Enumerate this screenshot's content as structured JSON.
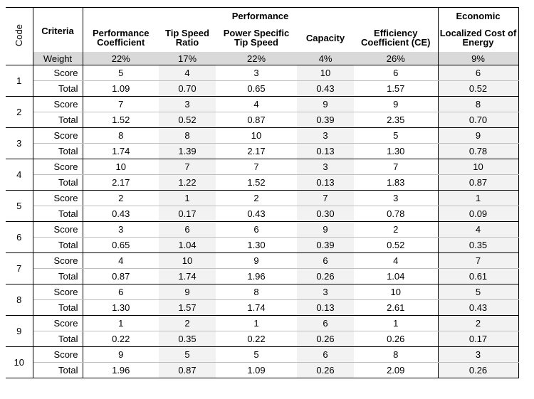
{
  "header": {
    "code_label": "Code",
    "criteria_label": "Criteria",
    "group_performance": "Performance",
    "group_economic": "Economic",
    "columns": [
      "Performance Coefficient",
      "Tip Speed Ratio",
      "Power Specific Tip Speed",
      "Capacity",
      "Efficiency Coefficient (CE)",
      "Localized Cost of Energy"
    ]
  },
  "weight": {
    "label": "Weight",
    "values": [
      "22%",
      "17%",
      "22%",
      "4%",
      "26%",
      "9%"
    ]
  },
  "score_label": "Score",
  "total_label": "Total",
  "rows": [
    {
      "code": "1",
      "score": [
        "5",
        "4",
        "3",
        "10",
        "6",
        "6"
      ],
      "total": [
        "1.09",
        "0.70",
        "0.65",
        "0.43",
        "1.57",
        "0.52"
      ]
    },
    {
      "code": "2",
      "score": [
        "7",
        "3",
        "4",
        "9",
        "9",
        "8"
      ],
      "total": [
        "1.52",
        "0.52",
        "0.87",
        "0.39",
        "2.35",
        "0.70"
      ]
    },
    {
      "code": "3",
      "score": [
        "8",
        "8",
        "10",
        "3",
        "5",
        "9"
      ],
      "total": [
        "1.74",
        "1.39",
        "2.17",
        "0.13",
        "1.30",
        "0.78"
      ]
    },
    {
      "code": "4",
      "score": [
        "10",
        "7",
        "7",
        "3",
        "7",
        "10"
      ],
      "total": [
        "2.17",
        "1.22",
        "1.52",
        "0.13",
        "1.83",
        "0.87"
      ]
    },
    {
      "code": "5",
      "score": [
        "2",
        "1",
        "2",
        "7",
        "3",
        "1"
      ],
      "total": [
        "0.43",
        "0.17",
        "0.43",
        "0.30",
        "0.78",
        "0.09"
      ]
    },
    {
      "code": "6",
      "score": [
        "3",
        "6",
        "6",
        "9",
        "2",
        "4"
      ],
      "total": [
        "0.65",
        "1.04",
        "1.30",
        "0.39",
        "0.52",
        "0.35"
      ]
    },
    {
      "code": "7",
      "score": [
        "4",
        "10",
        "9",
        "6",
        "4",
        "7"
      ],
      "total": [
        "0.87",
        "1.74",
        "1.96",
        "0.26",
        "1.04",
        "0.61"
      ]
    },
    {
      "code": "8",
      "score": [
        "6",
        "9",
        "8",
        "3",
        "10",
        "5"
      ],
      "total": [
        "1.30",
        "1.57",
        "1.74",
        "0.13",
        "2.61",
        "0.43"
      ]
    },
    {
      "code": "9",
      "score": [
        "1",
        "2",
        "1",
        "6",
        "1",
        "2"
      ],
      "total": [
        "0.22",
        "0.35",
        "0.22",
        "0.26",
        "0.26",
        "0.17"
      ]
    },
    {
      "code": "10",
      "score": [
        "9",
        "5",
        "5",
        "6",
        "8",
        "3"
      ],
      "total": [
        "1.96",
        "0.87",
        "1.09",
        "0.26",
        "2.09",
        "0.26"
      ]
    }
  ]
}
